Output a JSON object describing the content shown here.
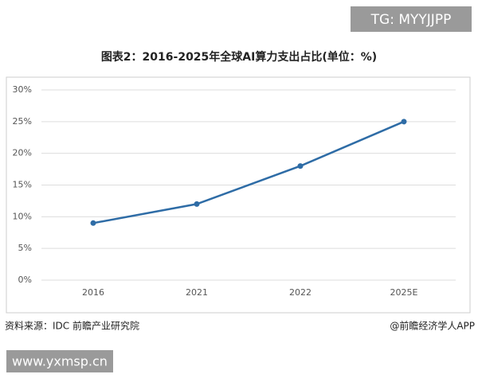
{
  "chart_data": {
    "type": "line",
    "title": "图表2：2016-2025年全球AI算力支出占比(单位：%)",
    "categories": [
      "2016",
      "2021",
      "2022",
      "2025E"
    ],
    "series": [
      {
        "name": "全球AI算力支出占比",
        "color": "#2e6ca6",
        "values": [
          9,
          12,
          18,
          25
        ]
      }
    ],
    "ylim": [
      0,
      30
    ],
    "yticks": [
      {
        "value": 0,
        "label": "0%"
      },
      {
        "value": 5,
        "label": "5%"
      },
      {
        "value": 10,
        "label": "10%"
      },
      {
        "value": 15,
        "label": "15%"
      },
      {
        "value": 20,
        "label": "20%"
      },
      {
        "value": 25,
        "label": "25%"
      },
      {
        "value": 30,
        "label": "30%"
      }
    ],
    "grid": true
  },
  "source": "资料来源：IDC 前瞻产业研究院",
  "credit": "@前瞻经济学人APP",
  "watermark_top": "TG: MYYJJPP",
  "watermark_bottom": "www.yxmsp.cn"
}
